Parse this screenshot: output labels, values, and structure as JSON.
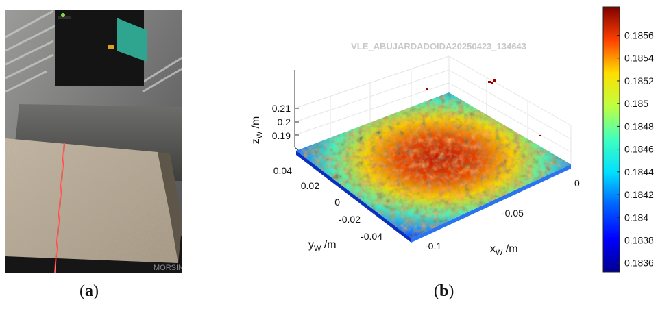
{
  "figure": {
    "caption_a": {
      "open": "(",
      "letter": "a",
      "close": ")"
    },
    "caption_b": {
      "open": "(",
      "letter": "b",
      "close": ")"
    }
  },
  "photo": {
    "watermark_text": "MORSIN",
    "colors": {
      "stone": "#b9ab97",
      "laser": "#ff2a2a",
      "metal": "#5d5d5d",
      "sensor": "#111111",
      "cable": "#2fa58f"
    }
  },
  "chart_data": {
    "type": "surface",
    "title": "VLE_ABUJARDADOIDA20250423_134643",
    "axes": {
      "x": {
        "label": "x",
        "subscript": "W",
        "unit": " /m",
        "ticks": [
          "-0.1",
          "-0.05",
          "0"
        ],
        "range": [
          -0.12,
          0.0
        ]
      },
      "y": {
        "label": "y",
        "subscript": "W",
        "unit": " /m",
        "ticks": [
          "0.04",
          "0.02",
          "0",
          "-0.02",
          "-0.04"
        ],
        "range": [
          -0.05,
          0.05
        ]
      },
      "z": {
        "label": "z",
        "subscript": "W",
        "unit": " /m",
        "ticks": [
          "0.21",
          "0.2",
          "0.19"
        ],
        "range": [
          0.185,
          0.212
        ]
      }
    },
    "colorbar": {
      "colormap": "jet",
      "range": [
        0.18352,
        0.18585
      ],
      "ticks": [
        "0.1856",
        "0.1854",
        "0.1852",
        "0.185",
        "0.1848",
        "0.1846",
        "0.1844",
        "0.1842",
        "0.184",
        "0.1838",
        "0.1836"
      ]
    },
    "grid": true
  }
}
